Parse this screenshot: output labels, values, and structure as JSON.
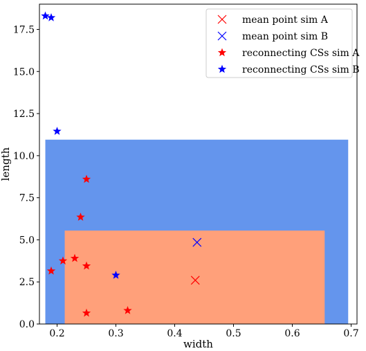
{
  "chart_data": {
    "type": "scatter",
    "xlabel": "width",
    "ylabel": "length",
    "xlim": [
      0.17,
      0.71
    ],
    "ylim": [
      0,
      19.0
    ],
    "xticks": [
      0.2,
      0.3,
      0.4,
      0.5,
      0.6,
      0.7
    ],
    "xtick_labels": [
      "0.2",
      "0.3",
      "0.4",
      "0.5",
      "0.6",
      "0.7"
    ],
    "yticks": [
      0,
      2.5,
      5,
      7.5,
      10,
      12.5,
      15,
      17.5
    ],
    "ytick_labels": [
      "0.0",
      "2.5",
      "5.0",
      "7.5",
      "10.0",
      "12.5",
      "15.0",
      "17.5"
    ],
    "grid": false,
    "legend_position": "top-right",
    "regions": [
      {
        "series": "sim B",
        "x": [
          0.18,
          0.695
        ],
        "y": [
          0,
          10.95
        ],
        "color": "#6495ed"
      },
      {
        "series": "sim A",
        "x": [
          0.213,
          0.655
        ],
        "y": [
          0,
          5.55
        ],
        "color": "#ffa07a"
      }
    ],
    "series": [
      {
        "name": "mean point sim A",
        "marker": "x",
        "color": "#ff0000",
        "x": [
          0.435
        ],
        "y": [
          2.6
        ]
      },
      {
        "name": "mean point sim B",
        "marker": "x",
        "color": "#0000ff",
        "x": [
          0.438
        ],
        "y": [
          4.85
        ]
      },
      {
        "name": "reconnecting CSs sim A",
        "marker": "star",
        "color": "#ff0000",
        "x": [
          0.25,
          0.24,
          0.19,
          0.21,
          0.23,
          0.25,
          0.32,
          0.25
        ],
        "y": [
          8.6,
          6.35,
          3.15,
          3.75,
          3.9,
          3.45,
          0.8,
          0.65
        ]
      },
      {
        "name": "reconnecting CSs sim B",
        "marker": "star",
        "color": "#0000ff",
        "x": [
          0.18,
          0.19,
          0.2,
          0.3
        ],
        "y": [
          18.3,
          18.2,
          11.45,
          2.9
        ]
      }
    ]
  }
}
